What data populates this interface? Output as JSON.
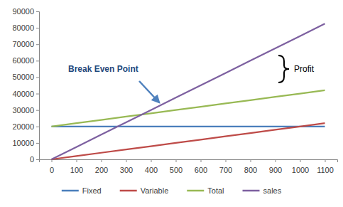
{
  "chart_data": {
    "type": "line",
    "x": [
      0,
      100,
      200,
      300,
      400,
      500,
      600,
      700,
      800,
      900,
      1000,
      1100
    ],
    "xlim": [
      -50,
      1150
    ],
    "xticks": [
      0,
      100,
      200,
      300,
      400,
      500,
      600,
      700,
      800,
      900,
      1000,
      1100
    ],
    "ylim": [
      0,
      90000
    ],
    "yticks": [
      0,
      10000,
      20000,
      30000,
      40000,
      50000,
      60000,
      70000,
      80000,
      90000
    ],
    "grid": false,
    "legend": "bottom",
    "series": [
      {
        "name": "Fixed",
        "color": "#4a7ebb",
        "values": [
          20000,
          20000,
          20000,
          20000,
          20000,
          20000,
          20000,
          20000,
          20000,
          20000,
          20000,
          20000
        ]
      },
      {
        "name": "Variable",
        "color": "#be4b48",
        "values": [
          0,
          2000,
          4000,
          6000,
          8000,
          10000,
          12000,
          14000,
          16000,
          18000,
          20000,
          22000
        ]
      },
      {
        "name": "Total",
        "color": "#98b954",
        "values": [
          20000,
          22000,
          24000,
          26000,
          28000,
          30000,
          32000,
          34000,
          36000,
          38000,
          40000,
          42000
        ]
      },
      {
        "name": "sales",
        "color": "#7d60a0",
        "values": [
          0,
          7500,
          15000,
          22500,
          30000,
          37500,
          45000,
          52500,
          60000,
          67500,
          75000,
          82500
        ]
      }
    ],
    "annotations": [
      {
        "text": "Break Even Point"
      },
      {
        "text": "Profit"
      }
    ]
  }
}
